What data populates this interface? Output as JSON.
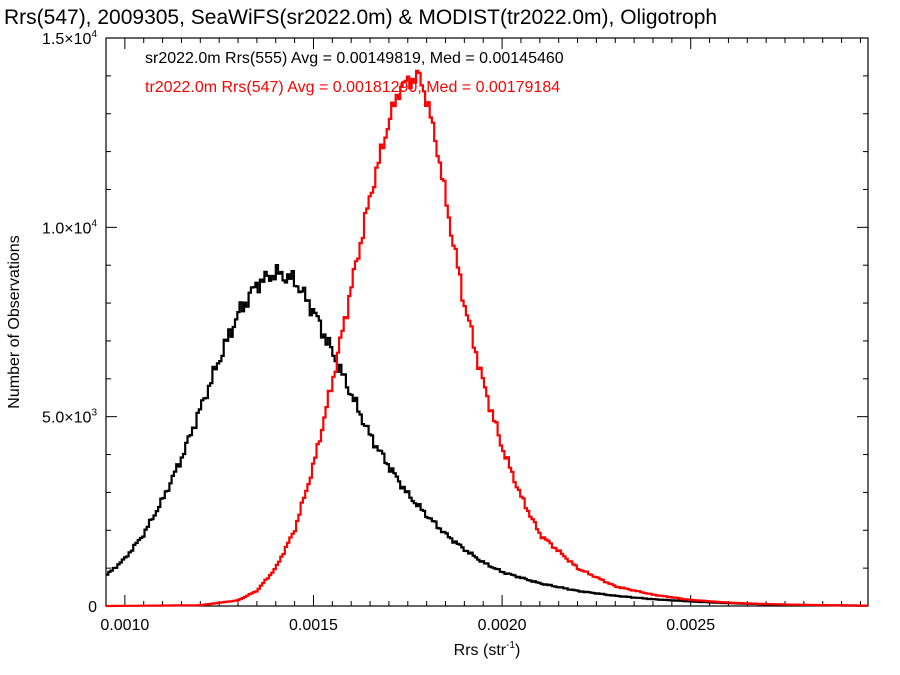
{
  "chart_data": {
    "type": "line",
    "title": "Rrs(547), 2009305, SeaWiFS(sr2022.0m) & MODIST(tr2022.0m), Oligotroph",
    "xlabel": "Rrs (str",
    "xlabel_sup": "-1",
    "xlabel_suffix": ")",
    "ylabel": "Number of Observations",
    "xlim": [
      0.00095,
      0.00297
    ],
    "ylim": [
      0,
      15000
    ],
    "grid": false,
    "legend_position": "top-left",
    "x_ticks": [
      {
        "value": 0.001,
        "label": "0.0010"
      },
      {
        "value": 0.0015,
        "label": "0.0015"
      },
      {
        "value": 0.002,
        "label": "0.0020"
      },
      {
        "value": 0.0025,
        "label": "0.0025"
      }
    ],
    "y_ticks": [
      {
        "value": 0,
        "mant": "0",
        "exp": ""
      },
      {
        "value": 5000,
        "mant": "5.0×10",
        "exp": "3"
      },
      {
        "value": 10000,
        "mant": "1.0×10",
        "exp": "4"
      },
      {
        "value": 15000,
        "mant": "1.5×10",
        "exp": "4"
      }
    ],
    "series": [
      {
        "name": "sr2022.0m Rrs(555) Avg = 0.00149819, Med = 0.00145460",
        "color": "#000000",
        "x": [
          0.00095,
          0.001,
          0.00105,
          0.0011,
          0.00115,
          0.0012,
          0.00125,
          0.0013,
          0.00135,
          0.0014,
          0.00145,
          0.0015,
          0.00155,
          0.0016,
          0.00165,
          0.0017,
          0.00175,
          0.0018,
          0.00185,
          0.0019,
          0.00195,
          0.002,
          0.0021,
          0.0022,
          0.0023,
          0.0024,
          0.0025,
          0.0026,
          0.0027,
          0.0028,
          0.0029,
          0.00297
        ],
        "y": [
          800,
          1250,
          1900,
          2800,
          3900,
          5200,
          6500,
          7700,
          8500,
          8800,
          8600,
          7800,
          6700,
          5600,
          4500,
          3700,
          2950,
          2400,
          1900,
          1500,
          1150,
          900,
          600,
          400,
          270,
          180,
          120,
          75,
          45,
          25,
          15,
          10
        ]
      },
      {
        "name": "tr2022.0m Rrs(547) Avg = 0.00181290, Med = 0.00179184",
        "color": "#ff0000",
        "x": [
          0.00095,
          0.0012,
          0.0013,
          0.00135,
          0.0014,
          0.00145,
          0.0015,
          0.00155,
          0.0016,
          0.00165,
          0.0017,
          0.00173,
          0.00176,
          0.00178,
          0.0018,
          0.00183,
          0.00186,
          0.0019,
          0.00195,
          0.002,
          0.00205,
          0.0021,
          0.0022,
          0.0023,
          0.0024,
          0.0025,
          0.0026,
          0.0027,
          0.0028,
          0.0029,
          0.00297
        ],
        "y": [
          0,
          20,
          150,
          400,
          1000,
          2000,
          3700,
          5900,
          8400,
          10800,
          12800,
          13700,
          13900,
          14000,
          13400,
          12000,
          10200,
          8000,
          5900,
          4200,
          2900,
          1900,
          1000,
          520,
          300,
          160,
          90,
          50,
          30,
          15,
          10
        ]
      }
    ]
  }
}
